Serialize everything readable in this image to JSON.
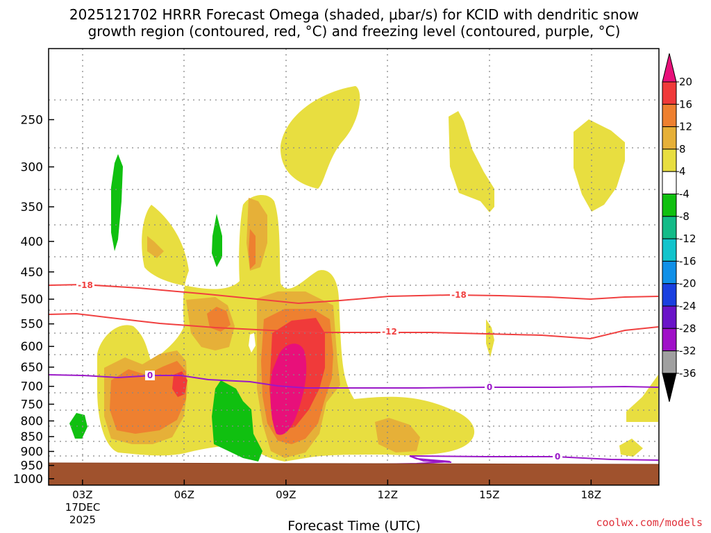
{
  "chart_data": {
    "type": "time-height contour plot",
    "title_line1": "2025121702 HRRR Forecast Omega (shaded, μbar/s) for KCID with dendritic snow",
    "title_line2": "growth region (contoured, red, °C) and freezing level (contoured, purple, °C)",
    "xlabel": "Forecast Time (UTC)",
    "x_ticks": [
      "03Z",
      "06Z",
      "09Z",
      "12Z",
      "15Z",
      "18Z"
    ],
    "x_date_label": "17DEC",
    "x_year_label": "2025",
    "xlim_hours_utc": [
      2,
      20
    ],
    "y_ticks_hpa": [
      "250",
      "300",
      "350",
      "400",
      "450",
      "500",
      "550",
      "600",
      "650",
      "700",
      "750",
      "800",
      "850",
      "900",
      "950",
      "1000"
    ],
    "ylim_hpa": [
      190,
      1025
    ],
    "colorbar": {
      "labels": [
        "20",
        "16",
        "12",
        "8",
        "4",
        "-4",
        "-8",
        "-12",
        "-16",
        "-20",
        "-24",
        "-28",
        "-32",
        "-36"
      ],
      "colors": [
        "#e8107a",
        "#f03a3a",
        "#ee8030",
        "#e6b038",
        "#e8de40",
        "#ffffff",
        "#10c010",
        "#14bb88",
        "#12c4cc",
        "#1090e8",
        "#1a40e0",
        "#6a14c8",
        "#a010c8",
        "#a0a0a0",
        "#000000"
      ]
    },
    "contours": [
      {
        "name": "dendritic snow growth region",
        "label": "-18",
        "color": "#f04040"
      },
      {
        "name": "dendritic snow growth region",
        "label": "-12",
        "color": "#f04040"
      },
      {
        "name": "freezing level",
        "label": "0",
        "color": "#9a18c8"
      }
    ],
    "ground_color": "#a0522d",
    "credit": "coolwx.com/models"
  }
}
